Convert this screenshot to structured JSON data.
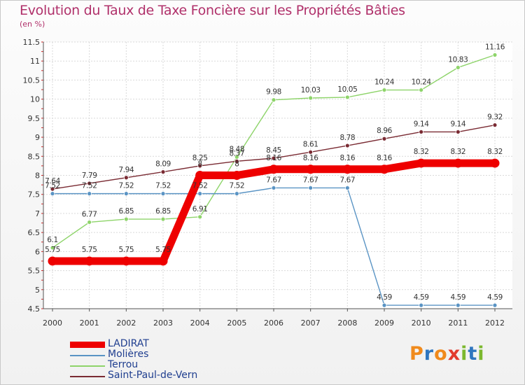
{
  "header": {
    "title": "Evolution du Taux de Taxe Foncière sur les Propriétés Bâties",
    "subtitle": "(en %)"
  },
  "brand": {
    "text": "Proxiti",
    "colors": [
      "#f08a1c",
      "#2f76bf",
      "#f08a1c",
      "#e23b2e",
      "#7cb82f",
      "#2f76bf",
      "#7cb82f"
    ]
  },
  "chart_data": {
    "type": "line",
    "title": "Evolution du Taux de Taxe Foncière sur les Propriétés Bâties",
    "ylabel": "(en %)",
    "xlabel": "",
    "ylim": [
      4.5,
      11.5
    ],
    "yticks": [
      "4.5",
      "5",
      "5.5",
      "6",
      "6.5",
      "7",
      "7.5",
      "8",
      "8.5",
      "9",
      "9.5",
      "10",
      "10.5",
      "11",
      "11.5"
    ],
    "categories": [
      "2000",
      "2001",
      "2002",
      "2003",
      "2004",
      "2005",
      "2006",
      "2007",
      "2008",
      "2009",
      "2010",
      "2011",
      "2012"
    ],
    "grid": true,
    "legend_position": "bottom-left",
    "series": [
      {
        "name": "LADIRAT",
        "color": "#ee0000",
        "values": [
          5.75,
          5.75,
          5.75,
          5.75,
          8,
          8,
          8.16,
          8.16,
          8.16,
          8.16,
          8.32,
          8.32,
          8.32
        ],
        "labels": [
          "5.75",
          "5.75",
          "5.75",
          "5.75",
          "8",
          "8",
          "8.16",
          "8.16",
          "8.16",
          "8.16",
          "8.32",
          "8.32",
          "8.32"
        ]
      },
      {
        "name": "Molières",
        "color": "#5a94c4",
        "values": [
          7.52,
          7.52,
          7.52,
          7.52,
          7.52,
          7.52,
          7.67,
          7.67,
          7.67,
          4.59,
          4.59,
          4.59,
          4.59
        ],
        "labels": [
          "7.52",
          "7.52",
          "7.52",
          "7.52",
          "7.52",
          "7.52",
          "7.67",
          "7.67",
          "7.67",
          "4.59",
          "4.59",
          "4.59",
          "4.59"
        ]
      },
      {
        "name": "Terrou",
        "color": "#8ed46a",
        "values": [
          6.1,
          6.77,
          6.85,
          6.85,
          6.91,
          8.48,
          9.98,
          10.03,
          10.05,
          10.24,
          10.24,
          10.83,
          11.16
        ],
        "labels": [
          "6.1",
          "6.77",
          "6.85",
          "6.85",
          "6.91",
          "8.48",
          "9.98",
          "10.03",
          "10.05",
          "10.24",
          "10.24",
          "10.83",
          "11.16"
        ]
      },
      {
        "name": "Saint-Paul-de-Vern",
        "color": "#7a2b33",
        "values": [
          7.64,
          7.79,
          7.94,
          8.09,
          8.25,
          8.37,
          8.45,
          8.61,
          8.78,
          8.96,
          9.14,
          9.14,
          9.32
        ],
        "labels": [
          "7.64",
          "7.79",
          "7.94",
          "8.09",
          "8.25",
          "8.37",
          "8.45",
          "8.61",
          "8.78",
          "8.96",
          "9.14",
          "9.14",
          "9.32"
        ]
      }
    ]
  }
}
